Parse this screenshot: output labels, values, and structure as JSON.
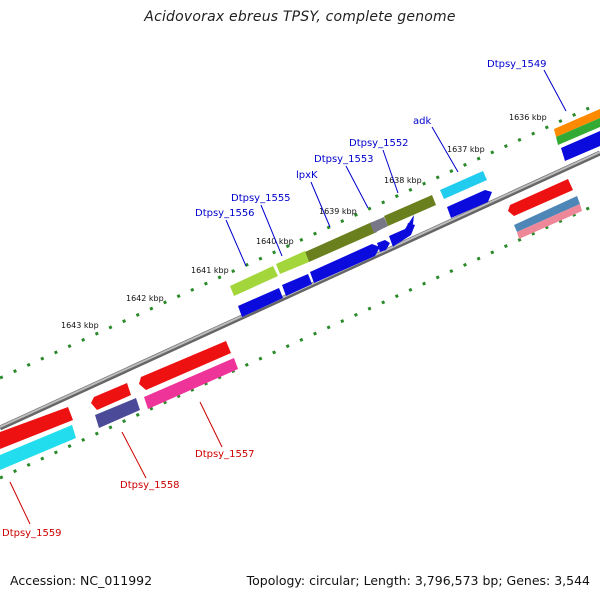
{
  "title": "Acidovorax ebreus TPSY, complete genome",
  "footer": {
    "accession": "Accession: NC_011992",
    "summary": "Topology: circular; Length: 3,796,573 bp; Genes: 3,544"
  },
  "ticks": [
    "1636 kbp",
    "1637 kbp",
    "1638 kbp",
    "1639 kbp",
    "1640 kbp",
    "1641 kbp",
    "1642 kbp",
    "1643 kbp"
  ],
  "genes_forward": [
    {
      "name": "Dtpsy_1549",
      "color": "#0000cc"
    },
    {
      "name": "adk",
      "color": "#0000cc"
    },
    {
      "name": "Dtpsy_1552",
      "color": "#0000cc"
    },
    {
      "name": "Dtpsy_1553",
      "color": "#0000cc"
    },
    {
      "name": "lpxK",
      "color": "#0000cc"
    },
    {
      "name": "Dtpsy_1555",
      "color": "#0000cc"
    },
    {
      "name": "Dtpsy_1556",
      "color": "#0000cc"
    }
  ],
  "genes_reverse": [
    {
      "name": "Dtpsy_1557",
      "color": "#cc0000"
    },
    {
      "name": "Dtpsy_1558",
      "color": "#cc0000"
    },
    {
      "name": "Dtpsy_1559",
      "color": "#cc0000"
    }
  ],
  "colors": {
    "backbone": "#888888",
    "tick": "#1e7a1e",
    "cds_forward": "#0b0bdd",
    "cds_reverse": "#ee1111",
    "cog_cyan": "#22ccee",
    "cog_olive": "#6a8a22",
    "cog_lime": "#aadd33",
    "cog_magenta": "#ee3399",
    "cog_slate": "#4a4a99",
    "cog_orange": "#ff8800",
    "cog_green": "#33aa33",
    "cog_steel": "#4f86b8",
    "cog_pink": "#ee8899",
    "cog_gray": "#888899"
  }
}
